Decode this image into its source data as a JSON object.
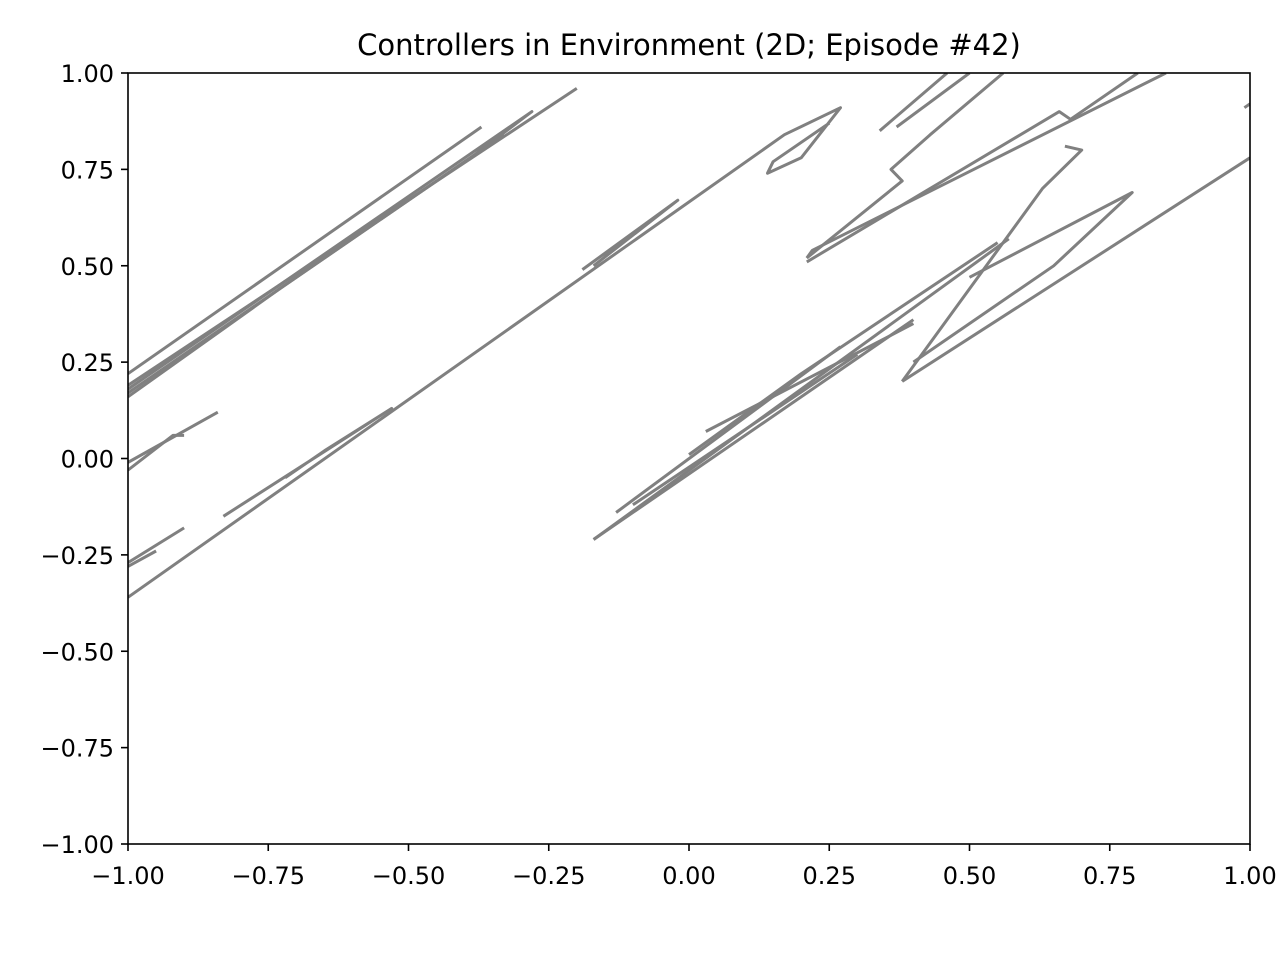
{
  "chart_data": {
    "type": "line",
    "title": "Controllers in Environment (2D; Episode #42)",
    "xlabel": "",
    "ylabel": "",
    "xlim": [
      -1.0,
      1.0
    ],
    "ylim": [
      -1.0,
      1.0
    ],
    "grid": false,
    "line_color": "#808080",
    "xticks": [
      -1.0,
      -0.75,
      -0.5,
      -0.25,
      0.0,
      0.25,
      0.5,
      0.75,
      1.0
    ],
    "yticks": [
      -1.0,
      -0.75,
      -0.5,
      -0.25,
      0.0,
      0.25,
      0.5,
      0.75,
      1.0
    ],
    "xtick_labels": [
      "−1.00",
      "−0.75",
      "−0.50",
      "−0.25",
      "0.00",
      "0.25",
      "0.50",
      "0.75",
      "1.00"
    ],
    "ytick_labels": [
      "−1.00",
      "−0.75",
      "−0.50",
      "−0.25",
      "0.00",
      "0.25",
      "0.50",
      "0.75",
      "1.00"
    ],
    "series": [
      {
        "points": [
          [
            -1.0,
            0.22
          ],
          [
            -0.37,
            0.86
          ]
        ]
      },
      {
        "points": [
          [
            -1.0,
            0.18
          ],
          [
            -0.28,
            0.9
          ],
          [
            -0.38,
            0.79
          ],
          [
            -1.0,
            0.17
          ]
        ]
      },
      {
        "points": [
          [
            -1.0,
            0.19
          ],
          [
            -0.2,
            0.96
          ]
        ]
      },
      {
        "points": [
          [
            -1.0,
            0.16
          ],
          [
            -0.73,
            0.44
          ],
          [
            -0.33,
            0.84
          ]
        ]
      },
      {
        "points": [
          [
            -1.0,
            -0.03
          ],
          [
            -0.92,
            0.06
          ],
          [
            -0.9,
            0.06
          ]
        ]
      },
      {
        "points": [
          [
            -1.0,
            -0.01
          ],
          [
            -0.84,
            0.12
          ]
        ]
      },
      {
        "points": [
          [
            -1.0,
            -0.27
          ],
          [
            -0.9,
            -0.18
          ]
        ]
      },
      {
        "points": [
          [
            -1.0,
            -0.28
          ],
          [
            -0.95,
            -0.24
          ]
        ]
      },
      {
        "points": [
          [
            -1.0,
            -0.36
          ],
          [
            0.17,
            0.84
          ],
          [
            0.27,
            0.91
          ],
          [
            0.2,
            0.78
          ],
          [
            0.14,
            0.74
          ],
          [
            0.15,
            0.77
          ],
          [
            0.25,
            0.87
          ]
        ]
      },
      {
        "points": [
          [
            -0.83,
            -0.15
          ],
          [
            -0.53,
            0.13
          ],
          [
            -0.65,
            0.02
          ],
          [
            -0.72,
            -0.05
          ]
        ]
      },
      {
        "points": [
          [
            -0.19,
            0.49
          ],
          [
            -0.02,
            0.67
          ],
          [
            -0.17,
            0.5
          ]
        ]
      },
      {
        "points": [
          [
            0.34,
            0.85
          ],
          [
            0.46,
            1.0
          ]
        ]
      },
      {
        "points": [
          [
            0.37,
            0.86
          ],
          [
            0.5,
            1.0
          ]
        ]
      },
      {
        "points": [
          [
            0.21,
            0.52
          ],
          [
            0.38,
            0.72
          ],
          [
            0.36,
            0.75
          ],
          [
            0.43,
            0.84
          ],
          [
            0.56,
            1.0
          ]
        ]
      },
      {
        "points": [
          [
            0.21,
            0.52
          ],
          [
            0.22,
            0.54
          ],
          [
            0.85,
            1.0
          ]
        ]
      },
      {
        "points": [
          [
            0.21,
            0.51
          ],
          [
            0.66,
            0.9
          ],
          [
            0.68,
            0.88
          ],
          [
            0.8,
            1.0
          ]
        ]
      },
      {
        "points": [
          [
            0.38,
            0.2
          ],
          [
            0.63,
            0.7
          ],
          [
            0.7,
            0.8
          ],
          [
            0.67,
            0.81
          ]
        ]
      },
      {
        "points": [
          [
            0.38,
            0.2
          ],
          [
            1.0,
            0.78
          ]
        ]
      },
      {
        "points": [
          [
            0.4,
            0.25
          ],
          [
            0.65,
            0.5
          ],
          [
            0.79,
            0.69
          ],
          [
            0.5,
            0.47
          ]
        ]
      },
      {
        "points": [
          [
            -0.17,
            -0.21
          ],
          [
            0.4,
            0.36
          ]
        ]
      },
      {
        "points": [
          [
            -0.17,
            -0.21
          ],
          [
            0.57,
            0.57
          ]
        ]
      },
      {
        "points": [
          [
            -0.13,
            -0.14
          ],
          [
            0.27,
            0.29
          ]
        ]
      },
      {
        "points": [
          [
            0.0,
            0.01
          ],
          [
            0.2,
            0.22
          ],
          [
            0.55,
            0.56
          ]
        ]
      },
      {
        "points": [
          [
            0.03,
            0.07
          ],
          [
            0.4,
            0.35
          ]
        ]
      },
      {
        "points": [
          [
            -0.1,
            -0.12
          ],
          [
            0.3,
            0.27
          ]
        ]
      },
      {
        "points": [
          [
            0.99,
            0.91
          ],
          [
            1.0,
            0.92
          ]
        ]
      }
    ]
  }
}
